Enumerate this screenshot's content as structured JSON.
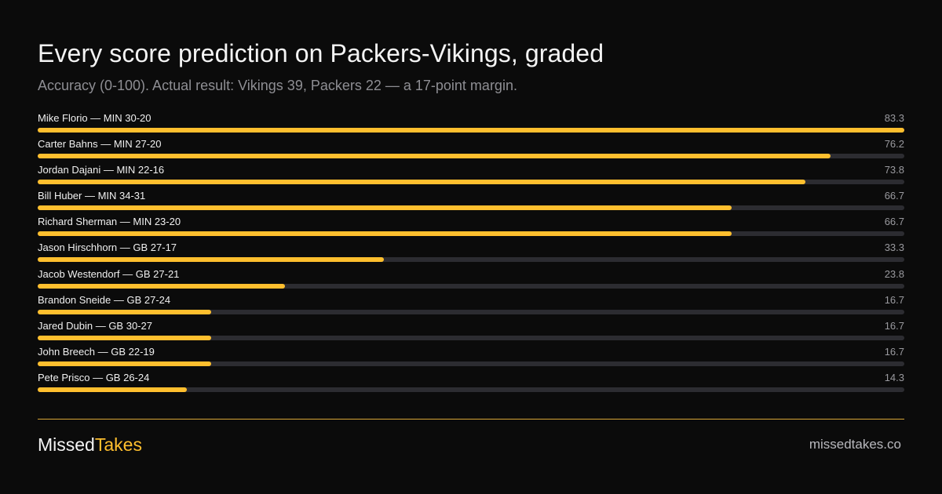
{
  "title": "Every score prediction on Packers-Vikings, graded",
  "subtitle": "Accuracy (0-100). Actual result: Vikings 39, Packers 22 — a 17-point margin.",
  "colors": {
    "accent": "#ffbf2e",
    "track": "#2c2c31",
    "background": "#0b0b0b",
    "divider": "#d9a636"
  },
  "chart_data": {
    "type": "bar",
    "orientation": "horizontal",
    "xlim": [
      0,
      83.3
    ],
    "categories": [
      "Mike Florio — MIN 30-20",
      "Carter Bahns — MIN 27-20",
      "Jordan Dajani — MIN 22-16",
      "Bill Huber — MIN 34-31",
      "Richard Sherman — MIN 23-20",
      "Jason Hirschhorn — GB 27-17",
      "Jacob Westendorf — GB 27-21",
      "Brandon Sneide — GB 27-24",
      "Jared Dubin — GB 30-27",
      "John Breech — GB 22-19",
      "Pete Prisco — GB 26-24"
    ],
    "values": [
      83.3,
      76.2,
      73.8,
      66.7,
      66.7,
      33.3,
      23.8,
      16.7,
      16.7,
      16.7,
      14.3
    ],
    "value_labels": [
      "83.3",
      "76.2",
      "73.8",
      "66.7",
      "66.7",
      "33.3",
      "23.8",
      "16.7",
      "16.7",
      "16.7",
      "14.3"
    ]
  },
  "footer": {
    "brand_part1": "Missed",
    "brand_part2": "Takes",
    "site": "missedtakes.co"
  }
}
